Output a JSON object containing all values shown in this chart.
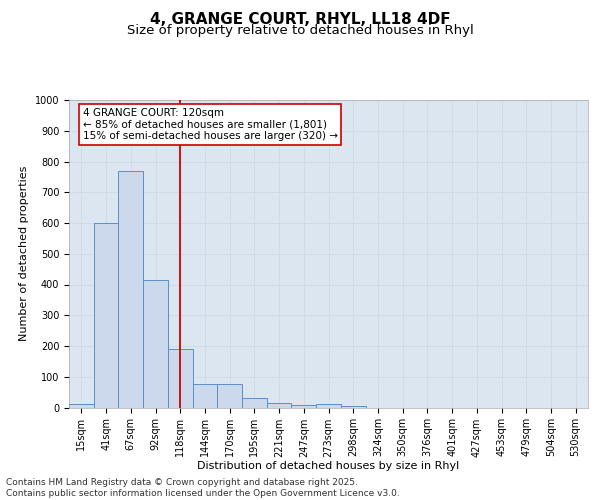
{
  "title_line1": "4, GRANGE COURT, RHYL, LL18 4DF",
  "title_line2": "Size of property relative to detached houses in Rhyl",
  "xlabel": "Distribution of detached houses by size in Rhyl",
  "ylabel": "Number of detached properties",
  "categories": [
    "15sqm",
    "41sqm",
    "67sqm",
    "92sqm",
    "118sqm",
    "144sqm",
    "170sqm",
    "195sqm",
    "221sqm",
    "247sqm",
    "273sqm",
    "298sqm",
    "324sqm",
    "350sqm",
    "376sqm",
    "401sqm",
    "427sqm",
    "453sqm",
    "479sqm",
    "504sqm",
    "530sqm"
  ],
  "values": [
    12,
    600,
    770,
    415,
    190,
    75,
    75,
    32,
    15,
    8,
    13,
    5,
    0,
    0,
    0,
    0,
    0,
    0,
    0,
    0,
    0
  ],
  "bar_color": "#ccd9ec",
  "bar_edge_color": "#5b8fc9",
  "vline_x_index": 4,
  "vline_color": "#cc0000",
  "annotation_box_text": "4 GRANGE COURT: 120sqm\n← 85% of detached houses are smaller (1,801)\n15% of semi-detached houses are larger (320) →",
  "annotation_box_color": "#cc0000",
  "annotation_box_fill": "#ffffff",
  "ylim": [
    0,
    1000
  ],
  "yticks": [
    0,
    100,
    200,
    300,
    400,
    500,
    600,
    700,
    800,
    900,
    1000
  ],
  "grid_color": "#d0d8e4",
  "background_color": "#dce6f0",
  "footer_text": "Contains HM Land Registry data © Crown copyright and database right 2025.\nContains public sector information licensed under the Open Government Licence v3.0.",
  "title_fontsize": 11,
  "subtitle_fontsize": 9.5,
  "tick_fontsize": 7,
  "label_fontsize": 8,
  "footer_fontsize": 6.5,
  "annotation_fontsize": 7.5
}
